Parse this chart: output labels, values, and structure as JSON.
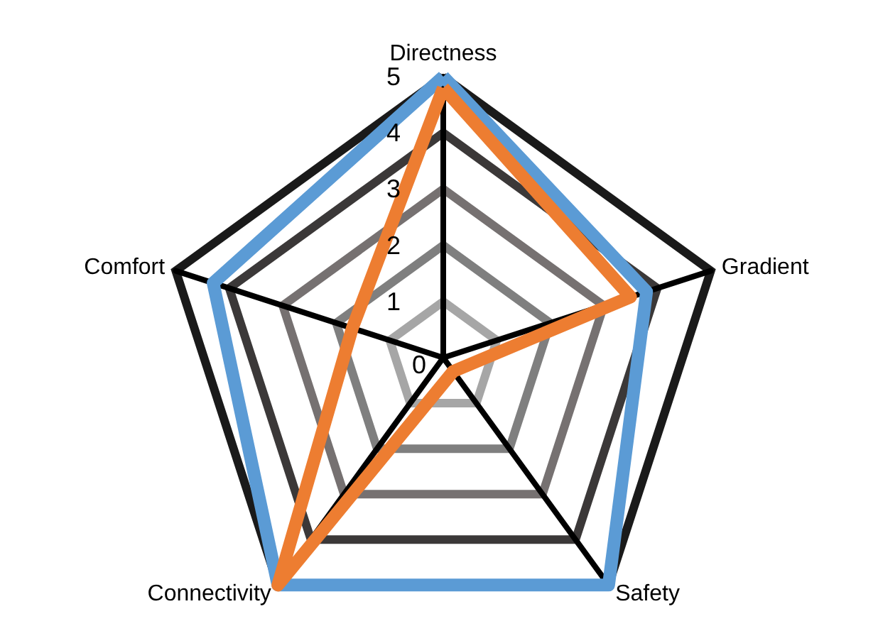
{
  "chart_data": {
    "type": "radar",
    "categories": [
      "Directness",
      "Gradient",
      "Safety",
      "Connectivity",
      "Comfort"
    ],
    "series": [
      {
        "color": "#5b9bd5",
        "values": [
          5,
          3.8,
          5,
          5,
          4.3
        ]
      },
      {
        "color": "#ed7d31",
        "values": [
          4.8,
          3.5,
          0.3,
          5,
          1.7
        ]
      }
    ],
    "ylim": [
      0,
      5
    ],
    "yticks": [
      0,
      1,
      2,
      3,
      4,
      5
    ],
    "grid": true,
    "marker": "none"
  }
}
